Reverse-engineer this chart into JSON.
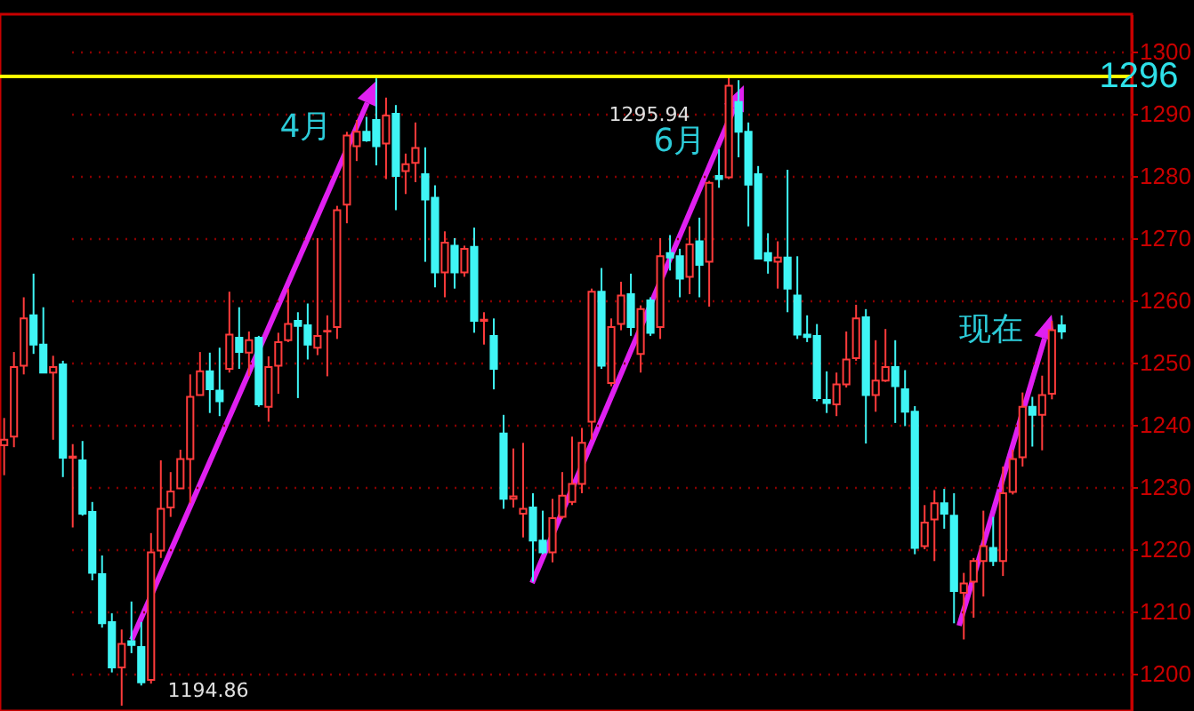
{
  "chart_data": {
    "type": "candlestick",
    "categories": [
      null,
      null,
      null,
      null,
      null,
      null,
      null,
      null,
      null,
      null,
      null,
      null,
      null,
      null,
      null,
      null,
      null,
      null,
      null,
      null,
      null,
      null,
      null,
      null,
      null,
      null,
      null,
      null,
      null,
      null,
      null,
      null,
      null,
      null,
      null,
      null,
      null,
      null,
      null,
      null,
      null,
      null,
      null,
      null,
      null,
      null,
      null,
      null,
      null,
      null,
      null,
      null,
      null,
      null,
      null,
      null,
      null,
      null,
      null,
      null,
      null,
      null,
      null,
      null,
      null,
      null,
      null,
      null,
      null,
      null,
      null,
      null,
      null,
      null,
      null,
      null,
      null,
      null,
      null,
      null,
      null,
      null,
      null,
      null,
      null,
      null,
      null,
      null,
      null,
      null,
      null,
      null,
      null,
      null,
      null,
      null,
      null,
      null,
      null,
      null,
      null,
      null,
      null,
      null,
      null,
      null,
      null,
      null,
      null
    ],
    "ohlc": [
      [
        1236.7,
        1241.1,
        1231.9,
        1237.6
      ],
      [
        1238.1,
        1251.7,
        1236.4,
        1249.3
      ],
      [
        1249.5,
        1260.5,
        1248.1,
        1257.1
      ],
      [
        1257.6,
        1264.3,
        1251.4,
        1252.9
      ],
      [
        1252.9,
        1258.9,
        1248.4,
        1248.4
      ],
      [
        1248.4,
        1251.1,
        1237.6,
        1249.3
      ],
      [
        1249.7,
        1250.3,
        1231.6,
        1234.7
      ],
      [
        1234.7,
        1236.9,
        1223.5,
        1234.9
      ],
      [
        1234.3,
        1237.4,
        1225.4,
        1225.7
      ],
      [
        1226.0,
        1227.6,
        1215.0,
        1216.2
      ],
      [
        1216.0,
        1219.0,
        1207.4,
        1208.1
      ],
      [
        1208.3,
        1209.7,
        1200.2,
        1201.0
      ],
      [
        1201.0,
        1207.1,
        1194.86,
        1204.8
      ],
      [
        1205.2,
        1211.6,
        1203.3,
        1204.6
      ],
      [
        1204.3,
        1208.3,
        1198.1,
        1198.6
      ],
      [
        1199.0,
        1222.6,
        1198.4,
        1219.5
      ],
      [
        1219.8,
        1234.3,
        1218.6,
        1226.5
      ],
      [
        1226.7,
        1232.4,
        1225.2,
        1229.3
      ],
      [
        1229.8,
        1236.0,
        1229.8,
        1234.5
      ],
      [
        1234.5,
        1248.1,
        1227.4,
        1244.5
      ],
      [
        1244.8,
        1251.7,
        1244.8,
        1248.6
      ],
      [
        1248.6,
        1251.6,
        1241.9,
        1245.7
      ],
      [
        1245.5,
        1252.4,
        1241.4,
        1243.8
      ],
      [
        1249.0,
        1261.4,
        1248.4,
        1254.5
      ],
      [
        1254.0,
        1258.9,
        1249.0,
        1251.7
      ],
      [
        1251.6,
        1255.0,
        1247.8,
        1253.6
      ],
      [
        1254.0,
        1254.3,
        1242.9,
        1243.3
      ],
      [
        1242.9,
        1251.0,
        1240.5,
        1249.3
      ],
      [
        1249.5,
        1254.8,
        1245.0,
        1253.3
      ],
      [
        1253.6,
        1261.9,
        1253.3,
        1256.2
      ],
      [
        1256.7,
        1258.1,
        1244.3,
        1255.9
      ],
      [
        1256.0,
        1259.5,
        1250.5,
        1252.9
      ],
      [
        1252.4,
        1270.0,
        1251.2,
        1254.3
      ],
      [
        1255.0,
        1257.6,
        1247.8,
        1255.1
      ],
      [
        1255.7,
        1275.2,
        1253.8,
        1274.5
      ],
      [
        1275.4,
        1287.1,
        1272.4,
        1286.5
      ],
      [
        1284.8,
        1289.0,
        1282.4,
        1287.1
      ],
      [
        1287.1,
        1289.5,
        1285.5,
        1285.7
      ],
      [
        1289.0,
        1295.7,
        1281.7,
        1284.8
      ],
      [
        1285.2,
        1292.6,
        1279.5,
        1289.7
      ],
      [
        1290.0,
        1291.4,
        1274.5,
        1280.0
      ],
      [
        1280.8,
        1283.6,
        1277.1,
        1281.9
      ],
      [
        1282.1,
        1288.6,
        1279.0,
        1284.5
      ],
      [
        1280.3,
        1284.6,
        1266.2,
        1276.2
      ],
      [
        1276.5,
        1278.5,
        1262.1,
        1264.5
      ],
      [
        1264.5,
        1271.1,
        1260.5,
        1269.3
      ],
      [
        1268.8,
        1270.0,
        1261.9,
        1264.5
      ],
      [
        1264.5,
        1268.8,
        1263.8,
        1268.3
      ],
      [
        1268.6,
        1271.7,
        1254.8,
        1256.7
      ],
      [
        1256.7,
        1258.1,
        1252.9,
        1256.9
      ],
      [
        1254.3,
        1257.1,
        1245.7,
        1249.0
      ],
      [
        1238.6,
        1241.6,
        1226.5,
        1228.1
      ],
      [
        1228.1,
        1236.2,
        1226.7,
        1228.5
      ],
      [
        1225.7,
        1237.1,
        1221.9,
        1226.5
      ],
      [
        1226.7,
        1229.0,
        1214.8,
        1221.4
      ],
      [
        1221.4,
        1226.2,
        1219.2,
        1219.5
      ],
      [
        1219.5,
        1228.1,
        1217.9,
        1225.0
      ],
      [
        1225.2,
        1232.4,
        1224.9,
        1228.6
      ],
      [
        1227.6,
        1238.1,
        1227.1,
        1230.5
      ],
      [
        1230.5,
        1239.5,
        1229.0,
        1237.1
      ],
      [
        1240.5,
        1261.9,
        1237.6,
        1261.4
      ],
      [
        1261.4,
        1265.2,
        1249.0,
        1249.5
      ],
      [
        1246.7,
        1257.1,
        1246.2,
        1255.7
      ],
      [
        1256.2,
        1263.0,
        1255.2,
        1260.8
      ],
      [
        1261.0,
        1264.3,
        1254.3,
        1255.7
      ],
      [
        1251.4,
        1259.2,
        1248.4,
        1258.6
      ],
      [
        1260.0,
        1260.5,
        1254.3,
        1254.8
      ],
      [
        1255.7,
        1270.0,
        1253.8,
        1267.1
      ],
      [
        1267.6,
        1270.5,
        1264.8,
        1266.9
      ],
      [
        1267.1,
        1268.3,
        1260.5,
        1263.5
      ],
      [
        1263.8,
        1271.9,
        1261.0,
        1269.0
      ],
      [
        1269.5,
        1273.3,
        1260.5,
        1265.7
      ],
      [
        1266.2,
        1279.2,
        1259.0,
        1278.9
      ],
      [
        1280.0,
        1284.3,
        1278.1,
        1279.5
      ],
      [
        1279.8,
        1295.94,
        1279.5,
        1294.5
      ],
      [
        1291.9,
        1295.4,
        1283.0,
        1287.1
      ],
      [
        1287.1,
        1288.6,
        1271.9,
        1278.6
      ],
      [
        1280.3,
        1281.6,
        1266.7,
        1266.7
      ],
      [
        1267.6,
        1270.8,
        1264.3,
        1266.4
      ],
      [
        1266.2,
        1269.5,
        1261.9,
        1266.9
      ],
      [
        1266.9,
        1281.0,
        1258.1,
        1261.9
      ],
      [
        1260.8,
        1267.1,
        1253.8,
        1254.5
      ],
      [
        1254.5,
        1257.6,
        1253.3,
        1254.1
      ],
      [
        1254.3,
        1256.2,
        1243.8,
        1244.3
      ],
      [
        1244.0,
        1248.6,
        1241.9,
        1243.5
      ],
      [
        1243.3,
        1248.4,
        1241.4,
        1246.5
      ],
      [
        1246.5,
        1255.0,
        1246.0,
        1250.5
      ],
      [
        1250.7,
        1259.3,
        1250.3,
        1257.1
      ],
      [
        1257.3,
        1258.6,
        1237.0,
        1244.8
      ],
      [
        1244.8,
        1253.6,
        1242.1,
        1247.1
      ],
      [
        1247.1,
        1255.4,
        1246.9,
        1249.3
      ],
      [
        1249.3,
        1253.6,
        1240.3,
        1246.2
      ],
      [
        1245.7,
        1248.8,
        1239.8,
        1242.1
      ],
      [
        1242.1,
        1243.0,
        1219.2,
        1220.2
      ],
      [
        1220.5,
        1227.1,
        1220.0,
        1224.3
      ],
      [
        1224.8,
        1229.5,
        1218.1,
        1227.4
      ],
      [
        1227.4,
        1229.7,
        1223.3,
        1225.7
      ],
      [
        1225.4,
        1229.0,
        1208.1,
        1213.3
      ],
      [
        1213.0,
        1216.2,
        1205.5,
        1214.5
      ],
      [
        1214.8,
        1218.6,
        1209.0,
        1218.1
      ],
      [
        1218.1,
        1226.2,
        1212.4,
        1220.5
      ],
      [
        1220.2,
        1225.2,
        1217.3,
        1218.1
      ],
      [
        1218.1,
        1233.3,
        1215.7,
        1229.0
      ],
      [
        1229.2,
        1236.0,
        1228.8,
        1234.5
      ],
      [
        1234.8,
        1245.2,
        1233.3,
        1242.9
      ],
      [
        1242.9,
        1244.5,
        1236.5,
        1241.6
      ],
      [
        1241.6,
        1247.9,
        1235.9,
        1244.8
      ],
      [
        1245.0,
        1256.7,
        1244.1,
        1255.2
      ],
      [
        1256.0,
        1257.6,
        1253.8,
        1255.0
      ]
    ],
    "colors": [
      "#ff3b3b",
      "#ff3b3b",
      "#ff3b3b",
      "#3ff5f5",
      "#3ff5f5",
      "#ff3b3b",
      "#3ff5f5",
      "#ff3b3b",
      "#3ff5f5",
      "#3ff5f5",
      "#3ff5f5",
      "#3ff5f5",
      "#ff3b3b",
      "#3ff5f5",
      "#3ff5f5",
      "#ff3b3b",
      "#ff3b3b",
      "#ff3b3b",
      "#ff3b3b",
      "#ff3b3b",
      "#ff3b3b",
      "#3ff5f5",
      "#3ff5f5",
      "#ff3b3b",
      "#3ff5f5",
      "#ff3b3b",
      "#3ff5f5",
      "#ff3b3b",
      "#ff3b3b",
      "#ff3b3b",
      "#3ff5f5",
      "#3ff5f5",
      "#ff3b3b",
      "#ff3b3b",
      "#ff3b3b",
      "#ff3b3b",
      "#ff3b3b",
      "#3ff5f5",
      "#3ff5f5",
      "#ff3b3b",
      "#3ff5f5",
      "#ff3b3b",
      "#ff3b3b",
      "#3ff5f5",
      "#3ff5f5",
      "#ff3b3b",
      "#3ff5f5",
      "#ff3b3b",
      "#3ff5f5",
      "#ff3b3b",
      "#3ff5f5",
      "#3ff5f5",
      "#ff3b3b",
      "#ff3b3b",
      "#3ff5f5",
      "#3ff5f5",
      "#ff3b3b",
      "#ff3b3b",
      "#ff3b3b",
      "#ff3b3b",
      "#ff3b3b",
      "#3ff5f5",
      "#ff3b3b",
      "#ff3b3b",
      "#3ff5f5",
      "#ff3b3b",
      "#3ff5f5",
      "#ff3b3b",
      "#3ff5f5",
      "#3ff5f5",
      "#ff3b3b",
      "#3ff5f5",
      "#ff3b3b",
      "#3ff5f5",
      "#ff3b3b",
      "#3ff5f5",
      "#3ff5f5",
      "#3ff5f5",
      "#3ff5f5",
      "#ff3b3b",
      "#3ff5f5",
      "#3ff5f5",
      "#3ff5f5",
      "#3ff5f5",
      "#3ff5f5",
      "#ff3b3b",
      "#ff3b3b",
      "#ff3b3b",
      "#3ff5f5",
      "#ff3b3b",
      "#ff3b3b",
      "#3ff5f5",
      "#3ff5f5",
      "#3ff5f5",
      "#ff3b3b",
      "#ff3b3b",
      "#3ff5f5",
      "#3ff5f5",
      "#ff3b3b",
      "#ff3b3b",
      "#ff3b3b",
      "#3ff5f5",
      "#ff3b3b",
      "#ff3b3b",
      "#ff3b3b",
      "#3ff5f5",
      "#ff3b3b",
      "#ff3b3b",
      "#3ff5f5"
    ],
    "ylim": [
      1194,
      1306
    ],
    "yticks": [
      1200,
      1210,
      1220,
      1230,
      1240,
      1250,
      1260,
      1270,
      1280,
      1290,
      1300
    ],
    "grid": "y",
    "tick_labels": "y",
    "ref_lines": [
      {
        "axis": "y",
        "value": 1296,
        "label": "1296",
        "color": "#ffff00"
      }
    ],
    "annotations": [
      "4月",
      "6月",
      "现在",
      "1194.86",
      "1295.94"
    ]
  }
}
